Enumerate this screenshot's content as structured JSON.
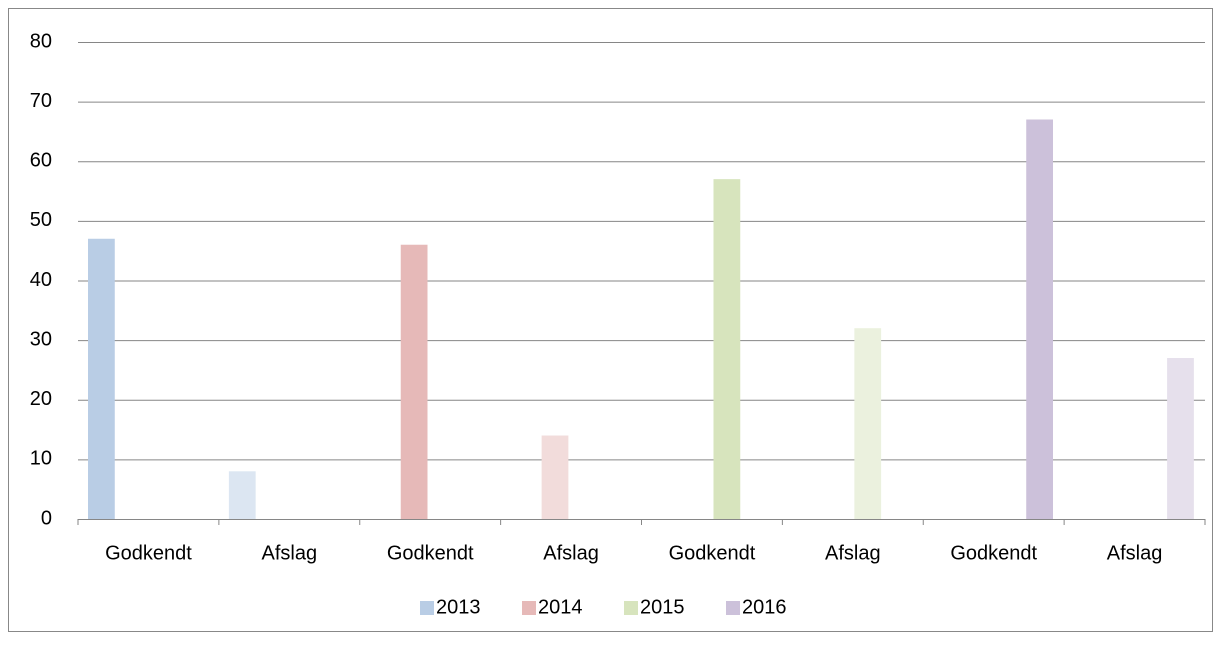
{
  "chart_data": {
    "type": "bar",
    "categories": [
      "Godkendt",
      "Afslag",
      "Godkendt",
      "Afslag",
      "Godkendt",
      "Afslag",
      "Godkendt",
      "Afslag"
    ],
    "series": [
      {
        "name": "2013",
        "color": "#b9cde5",
        "point_colors": [
          "#b9cde5",
          "#dce6f2",
          null,
          null,
          null,
          null,
          null,
          null
        ],
        "values": [
          47,
          8,
          null,
          null,
          null,
          null,
          null,
          null
        ]
      },
      {
        "name": "2014",
        "color": "#e6b9b8",
        "point_colors": [
          null,
          null,
          "#e6b9b8",
          "#f2dcdb",
          null,
          null,
          null,
          null
        ],
        "values": [
          null,
          null,
          46,
          14,
          null,
          null,
          null,
          null
        ]
      },
      {
        "name": "2015",
        "color": "#d7e4bd",
        "point_colors": [
          null,
          null,
          null,
          null,
          "#d7e4bd",
          "#ebf1de",
          null,
          null
        ],
        "values": [
          null,
          null,
          null,
          null,
          57,
          32,
          null,
          null
        ]
      },
      {
        "name": "2016",
        "color": "#ccc1da",
        "point_colors": [
          null,
          null,
          null,
          null,
          null,
          null,
          "#ccc1da",
          "#e6e0ec"
        ],
        "values": [
          null,
          null,
          null,
          null,
          null,
          null,
          67,
          27
        ]
      }
    ],
    "ylim": [
      0,
      80
    ],
    "yticks": [
      0,
      10,
      20,
      30,
      40,
      50,
      60,
      70,
      80
    ],
    "grid": true,
    "legend": "bottom"
  }
}
